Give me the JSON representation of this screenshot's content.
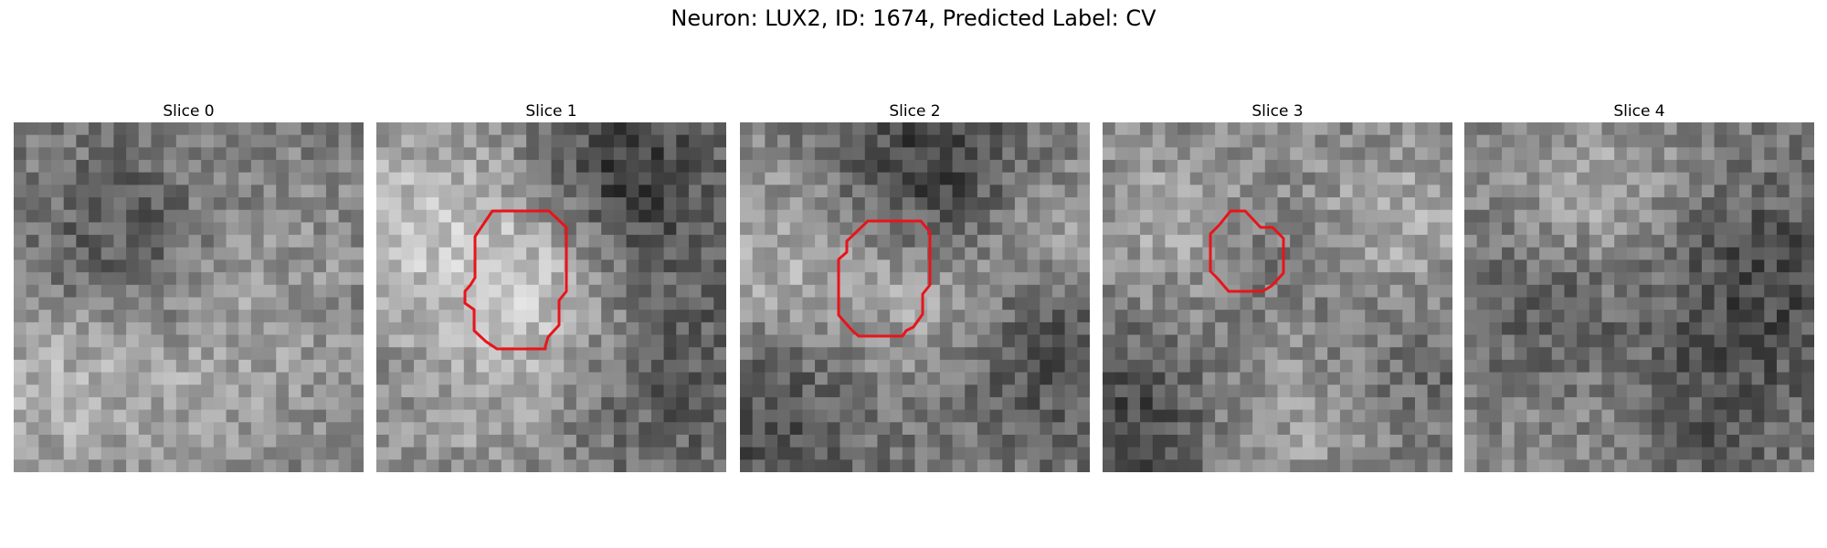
{
  "figure": {
    "title": "Neuron: LUX2, ID: 1674, Predicted Label: CV"
  },
  "colors": {
    "contour": "#e8141a",
    "background": "#ffffff"
  },
  "slices": [
    {
      "label": "Slice 0",
      "has_contour": false,
      "seed": 11,
      "blobs": [
        [
          0.3,
          0.35,
          0.18,
          -40
        ],
        [
          0.75,
          0.45,
          0.2,
          25
        ],
        [
          0.1,
          0.75,
          0.2,
          50
        ],
        [
          0.55,
          0.78,
          0.22,
          30
        ]
      ]
    },
    {
      "label": "Slice 1",
      "has_contour": true,
      "seed": 23,
      "blobs": [
        [
          0.15,
          0.3,
          0.22,
          70
        ],
        [
          0.5,
          0.5,
          0.18,
          60
        ],
        [
          0.72,
          0.15,
          0.18,
          -70
        ],
        [
          0.85,
          0.7,
          0.22,
          -40
        ],
        [
          0.3,
          0.85,
          0.2,
          30
        ]
      ]
    },
    {
      "label": "Slice 2",
      "has_contour": true,
      "seed": 37,
      "blobs": [
        [
          0.1,
          0.4,
          0.2,
          50
        ],
        [
          0.55,
          0.5,
          0.18,
          55
        ],
        [
          0.55,
          0.15,
          0.2,
          -70
        ],
        [
          0.1,
          0.85,
          0.2,
          -50
        ],
        [
          0.85,
          0.65,
          0.2,
          -50
        ],
        [
          0.9,
          0.3,
          0.15,
          40
        ]
      ]
    },
    {
      "label": "Slice 3",
      "has_contour": true,
      "seed": 41,
      "blobs": [
        [
          0.2,
          0.3,
          0.2,
          40
        ],
        [
          0.85,
          0.3,
          0.2,
          45
        ],
        [
          0.5,
          0.4,
          0.14,
          -25
        ],
        [
          0.1,
          0.85,
          0.2,
          -55
        ],
        [
          0.55,
          0.85,
          0.2,
          40
        ],
        [
          0.85,
          0.7,
          0.18,
          -30
        ]
      ]
    },
    {
      "label": "Slice 4",
      "has_contour": false,
      "seed": 53,
      "blobs": [
        [
          0.35,
          0.25,
          0.2,
          55
        ],
        [
          0.25,
          0.5,
          0.2,
          -50
        ],
        [
          0.85,
          0.45,
          0.2,
          -55
        ],
        [
          0.7,
          0.85,
          0.18,
          -35
        ],
        [
          0.3,
          0.85,
          0.2,
          20
        ]
      ]
    }
  ]
}
